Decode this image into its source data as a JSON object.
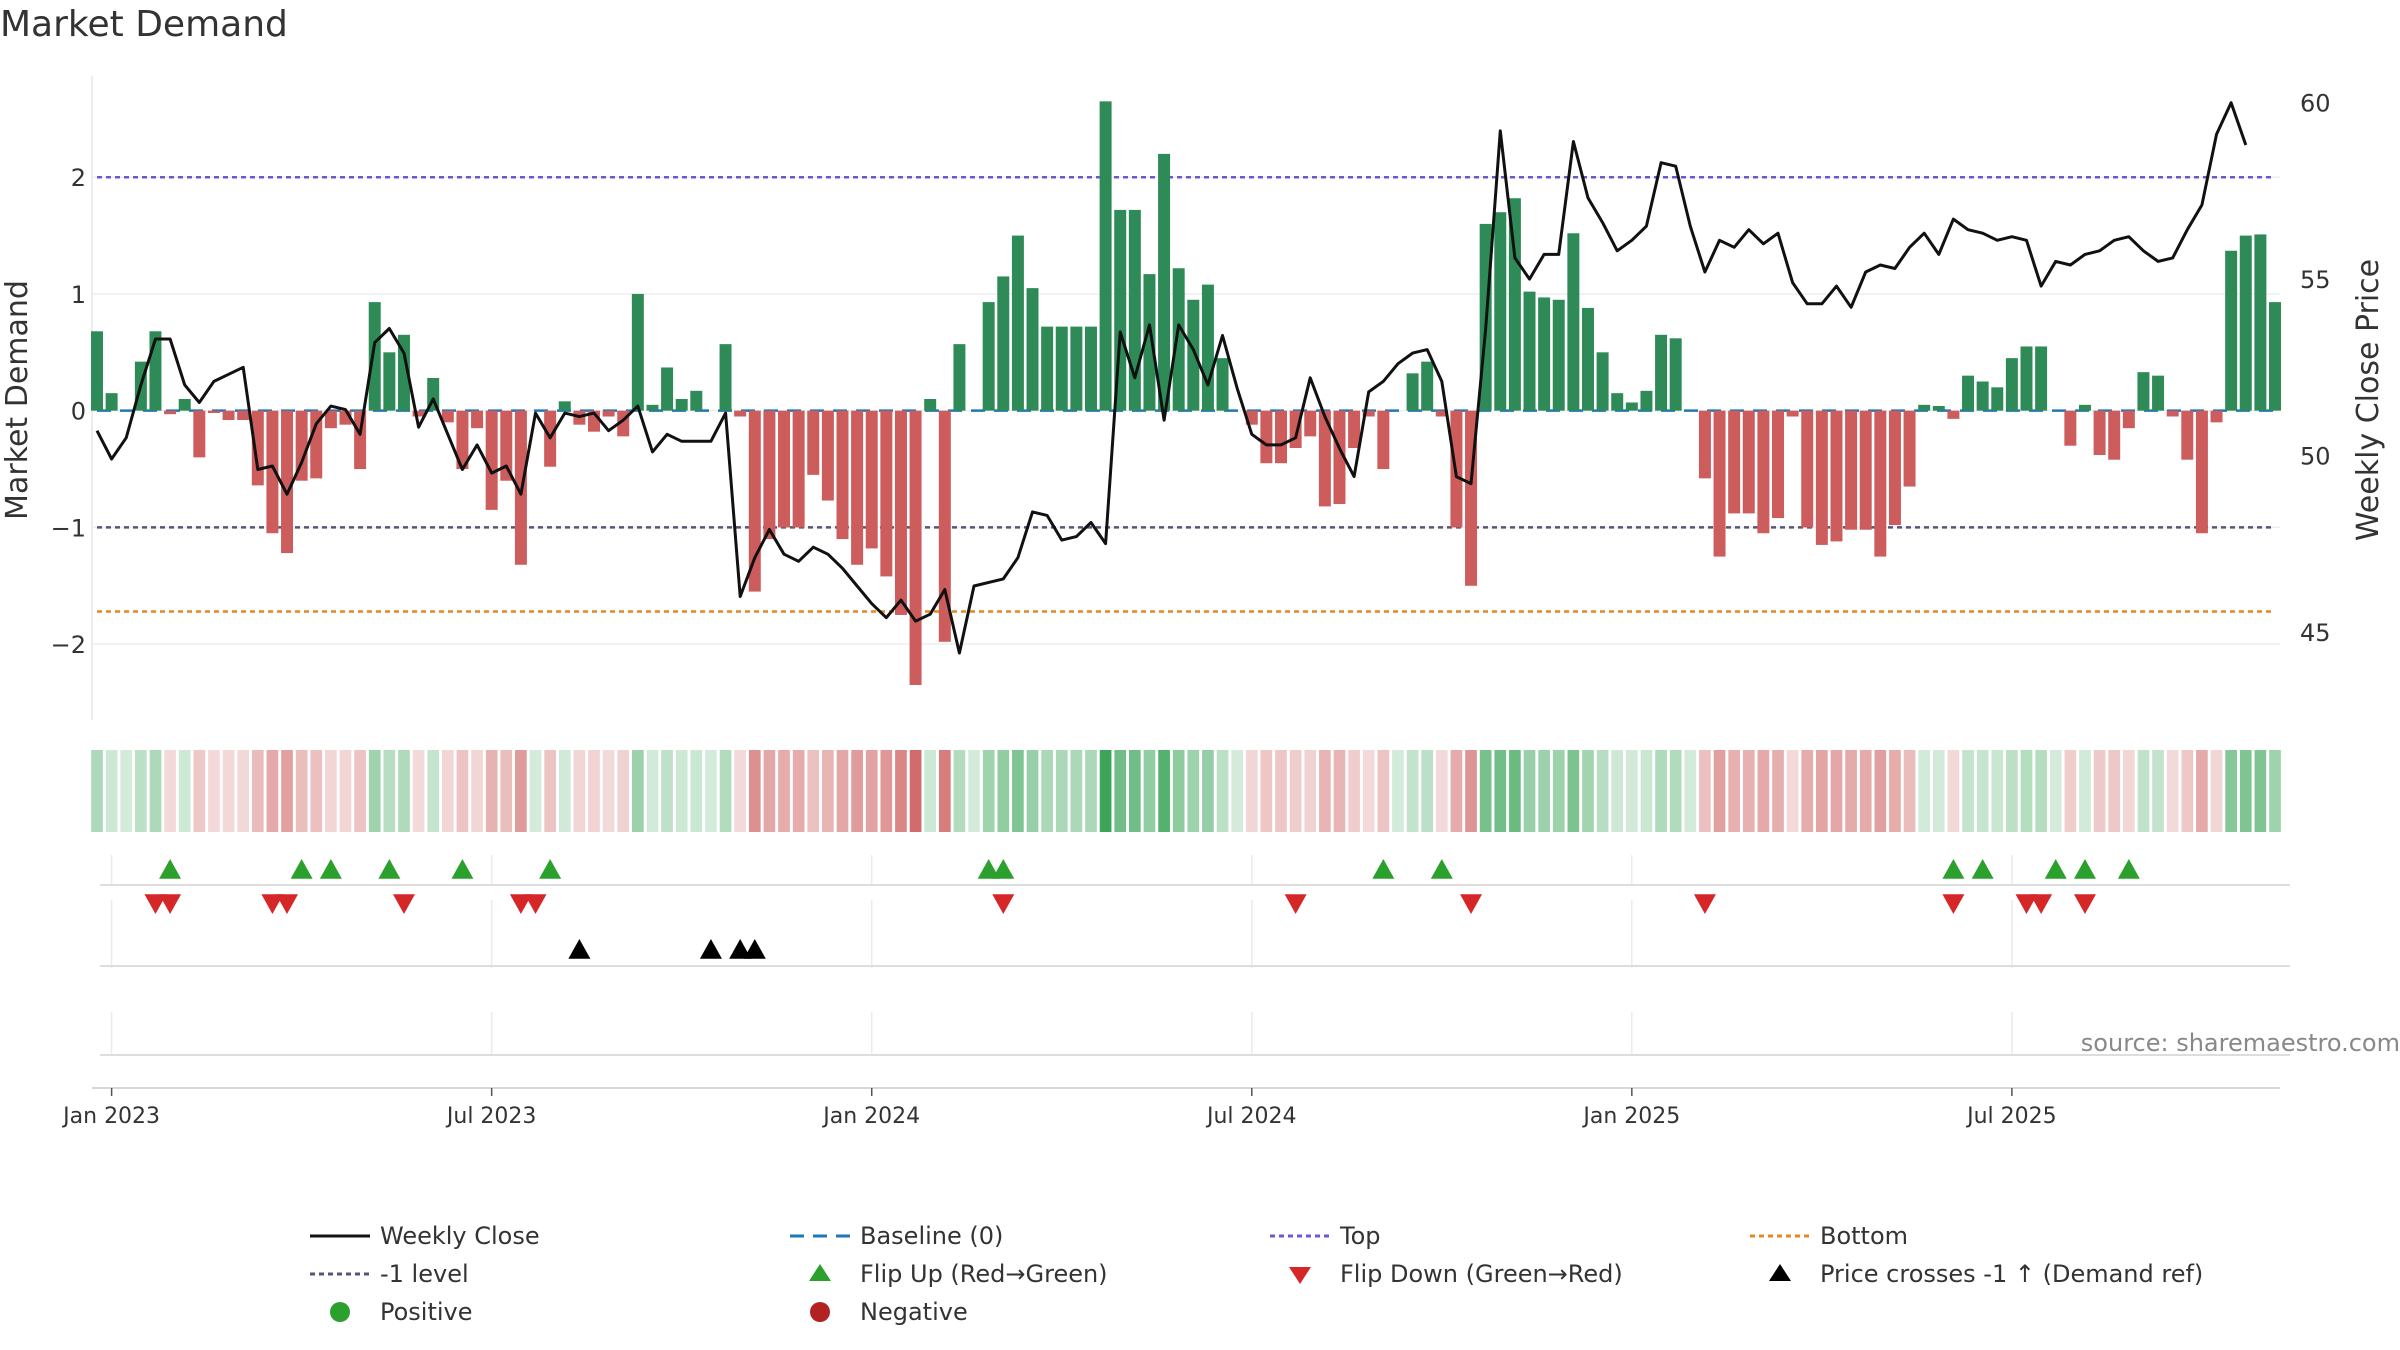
{
  "chart_data": {
    "type": "bar",
    "title": "Market Demand",
    "ylabel": "Market Demand",
    "y2label": "Weekly Close Price",
    "ylim": [
      -2.65,
      2.85
    ],
    "y_ticks": [
      -2,
      -1,
      0,
      1,
      2
    ],
    "y2lim": [
      42.5,
      60.7
    ],
    "y2_ticks": [
      45,
      50,
      55,
      60
    ],
    "x_ticks": [
      "Jan 2023",
      "Jul 2023",
      "Jan 2024",
      "Jul 2024",
      "Jan 2025",
      "Jul 2025"
    ],
    "x_tick_weeks": [
      1,
      27,
      53,
      79,
      105,
      131
    ],
    "levels": {
      "top": 2.0,
      "minus_one": -1.0,
      "bottom": -1.72,
      "baseline": 0
    },
    "series": [
      {
        "name": "Market Demand",
        "type": "bar",
        "values": [
          0.68,
          0.15,
          0.0,
          0.42,
          0.68,
          -0.03,
          0.1,
          -0.4,
          -0.02,
          -0.08,
          -0.08,
          -0.64,
          -1.05,
          -1.22,
          -0.6,
          -0.58,
          -0.15,
          -0.12,
          -0.5,
          0.93,
          0.5,
          0.65,
          -0.05,
          0.28,
          -0.1,
          -0.5,
          -0.15,
          -0.85,
          -0.6,
          -1.32,
          0.0,
          -0.48,
          0.08,
          -0.12,
          -0.18,
          -0.05,
          -0.22,
          1.0,
          0.05,
          0.37,
          0.1,
          0.17,
          0.0,
          0.57,
          -0.05,
          -1.55,
          -1.1,
          -1.0,
          -1.0,
          -0.55,
          -0.77,
          -1.1,
          -1.32,
          -1.18,
          -1.42,
          -1.75,
          -2.35,
          0.1,
          -1.98,
          0.57,
          0.0,
          0.93,
          1.15,
          1.5,
          1.05,
          0.72,
          0.72,
          0.72,
          0.72,
          2.65,
          1.72,
          1.72,
          1.17,
          2.2,
          1.22,
          0.95,
          1.08,
          0.45,
          0.0,
          -0.12,
          -0.45,
          -0.45,
          -0.32,
          -0.22,
          -0.82,
          -0.8,
          -0.32,
          -0.05,
          -0.5,
          0.0,
          0.32,
          0.42,
          -0.05,
          -1.0,
          -1.5,
          1.6,
          1.7,
          1.82,
          1.02,
          0.97,
          0.95,
          1.52,
          0.88,
          0.5,
          0.15,
          0.07,
          0.17,
          0.65,
          0.62,
          0.0,
          -0.58,
          -1.25,
          -0.88,
          -0.88,
          -1.05,
          -0.92,
          -0.05,
          -1.0,
          -1.15,
          -1.12,
          -1.02,
          -1.02,
          -1.25,
          -0.98,
          -0.65,
          0.05,
          0.04,
          -0.07,
          0.3,
          0.25,
          0.2,
          0.45,
          0.55,
          0.55,
          0.0,
          -0.3,
          0.05,
          -0.38,
          -0.42,
          -0.15,
          0.33,
          0.3,
          -0.05,
          -0.42,
          -1.05,
          -0.1,
          1.37,
          1.5,
          1.51,
          0.93
        ]
      },
      {
        "name": "Weekly Close",
        "type": "line",
        "axis": "right",
        "values": [
          50.7,
          49.9,
          50.5,
          52.0,
          53.3,
          53.3,
          52.0,
          51.5,
          52.1,
          52.3,
          52.5,
          49.6,
          49.7,
          48.9,
          49.8,
          50.9,
          51.4,
          51.3,
          50.6,
          53.2,
          53.6,
          52.9,
          50.8,
          51.6,
          50.6,
          49.6,
          50.3,
          49.5,
          49.7,
          48.9,
          51.2,
          50.5,
          51.2,
          51.1,
          51.2,
          50.7,
          51.0,
          51.4,
          50.1,
          50.6,
          50.4,
          50.4,
          50.4,
          51.2,
          46.0,
          47.1,
          47.9,
          47.2,
          47.0,
          47.4,
          47.2,
          46.8,
          46.3,
          45.8,
          45.4,
          45.9,
          45.3,
          45.5,
          46.2,
          44.4,
          46.3,
          46.4,
          46.5,
          47.1,
          48.4,
          48.3,
          47.6,
          47.7,
          48.1,
          47.5,
          53.5,
          52.2,
          53.7,
          51.0,
          53.7,
          53.0,
          52.0,
          53.4,
          51.9,
          50.6,
          50.3,
          50.3,
          50.5,
          52.2,
          51.1,
          50.2,
          49.4,
          51.8,
          52.1,
          52.6,
          52.9,
          53.0,
          52.1,
          49.4,
          49.2,
          53.6,
          59.2,
          55.6,
          55.0,
          55.7,
          55.7,
          58.9,
          57.3,
          56.6,
          55.8,
          56.1,
          56.5,
          58.3,
          58.2,
          56.5,
          55.2,
          56.1,
          55.9,
          56.4,
          56.0,
          56.3,
          54.9,
          54.3,
          54.3,
          54.8,
          54.2,
          55.2,
          55.4,
          55.3,
          55.9,
          56.3,
          55.7,
          56.7,
          56.4,
          56.3,
          56.1,
          56.2,
          56.1,
          54.8,
          55.5,
          55.4,
          55.7,
          55.8,
          56.1,
          56.2,
          55.8,
          55.5,
          55.6,
          56.4,
          57.1,
          59.1,
          60.0,
          58.8
        ]
      }
    ],
    "flip_up_weeks": [
      5,
      14,
      16,
      20,
      25,
      31,
      61,
      62,
      88,
      92,
      127,
      129,
      134,
      136,
      139
    ],
    "flip_down_weeks": [
      4,
      5,
      12,
      13,
      21,
      29,
      30,
      62,
      82,
      94,
      110,
      127,
      132,
      133,
      136
    ],
    "price_cross_weeks": [
      33,
      42,
      44,
      45
    ],
    "source": "source: sharemaestro.com",
    "colors": {
      "positive": "#2e8b57",
      "negative": "#cd5c5c",
      "line": "#111111",
      "top": "#6a5acd",
      "bottom": "#e08a1e",
      "minus_one": "#555577",
      "baseline": "#1f77b4",
      "flip_up": "#2ca02c",
      "flip_down": "#d62728",
      "cross": "#000000",
      "positive_dot": "#2ca02c",
      "negative_dot": "#b22222"
    }
  },
  "legend": [
    {
      "key": "close",
      "label": "Weekly Close"
    },
    {
      "key": "baseline",
      "label": "Baseline (0)"
    },
    {
      "key": "top",
      "label": "Top"
    },
    {
      "key": "bottom",
      "label": "Bottom"
    },
    {
      "key": "minus_one",
      "label": "-1 level"
    },
    {
      "key": "flip_up",
      "label": "Flip Up (Red→Green)"
    },
    {
      "key": "flip_down",
      "label": "Flip Down (Green→Red)"
    },
    {
      "key": "cross",
      "label": "Price crosses -1 ↑ (Demand ref)"
    },
    {
      "key": "positive",
      "label": "Positive"
    },
    {
      "key": "negative",
      "label": "Negative"
    }
  ]
}
